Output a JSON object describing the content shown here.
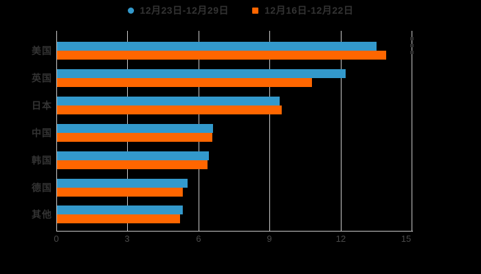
{
  "page": {
    "background": "#000000"
  },
  "legend": {
    "items": [
      {
        "label": "12月23日-12月29日",
        "color": "#3399CC",
        "marker": "circle"
      },
      {
        "label": "12月16日-12月22日",
        "color": "#FF6600",
        "marker": "square"
      }
    ]
  },
  "axis": {
    "grid_color": "#cccccc",
    "tick_label_color": "#4a4a4a",
    "category_label_color": "#333333",
    "x_tick_labels": [
      "0",
      "3",
      "6",
      "9",
      "12",
      "15"
    ]
  },
  "chart_data": {
    "type": "bar",
    "orientation": "horizontal",
    "title": "",
    "xlabel": "",
    "ylabel": "",
    "xlim": [
      0,
      15
    ],
    "x_ticks": [
      0,
      3,
      6,
      9,
      12,
      15
    ],
    "grid": true,
    "legend_position": "top",
    "categories": [
      "美国",
      "英国",
      "日本",
      "中国",
      "韩国",
      "德国",
      "其他"
    ],
    "series": [
      {
        "name": "12月23日-12月29日",
        "color": "#3399CC",
        "values": [
          13.5,
          12.2,
          9.4,
          6.6,
          6.4,
          5.5,
          5.3
        ]
      },
      {
        "name": "12月16日-12月22日",
        "color": "#FF6600",
        "values": [
          13.9,
          10.75,
          9.5,
          6.55,
          6.35,
          5.3,
          5.2
        ]
      }
    ]
  }
}
